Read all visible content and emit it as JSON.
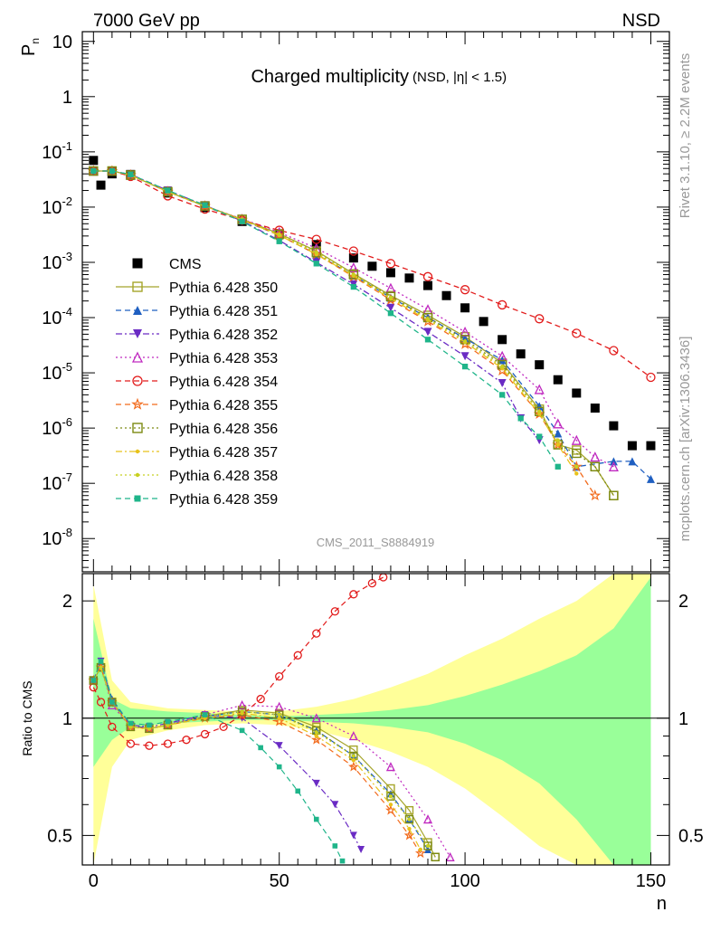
{
  "header": {
    "left": "7000 GeV pp",
    "right": "NSD"
  },
  "side_labels": {
    "top": "Rivet 3.1.10, ≥ 2.2M events",
    "bottom": "mcplots.cern.ch [arXiv:1306.3436]"
  },
  "watermark": "CMS_2011_S8884919",
  "chart_data": [
    {
      "type": "scatter",
      "panel": "main",
      "title": "Charged multiplicity",
      "subtitle": "(NSD, |η| < 1.5)",
      "ylabel": "P_n",
      "xlabel": "",
      "yscale": "log",
      "xlim": [
        -3,
        155
      ],
      "ylim": [
        2.5e-09,
        15
      ],
      "yticks_labels": [
        "10",
        "1",
        "10^-1",
        "10^-2",
        "10^-3",
        "10^-4",
        "10^-5",
        "10^-6",
        "10^-7",
        "10^-8"
      ],
      "legend_position": "left",
      "series": [
        {
          "name": "CMS",
          "color": "#000000",
          "marker": "square-filled",
          "line": "none",
          "x": [
            0,
            2,
            5,
            10,
            20,
            30,
            40,
            50,
            60,
            70,
            75,
            80,
            85,
            90,
            95,
            100,
            105,
            110,
            115,
            120,
            125,
            130,
            135,
            140,
            145,
            150
          ],
          "y": [
            0.07,
            0.025,
            0.04,
            0.039,
            0.018,
            0.0098,
            0.0055,
            0.0033,
            0.0021,
            0.0012,
            0.00085,
            0.00065,
            0.00052,
            0.00038,
            0.00025,
            0.00015,
            8.5e-05,
            4e-05,
            2.2e-05,
            1.4e-05,
            7.5e-06,
            4.3e-06,
            2.3e-06,
            1.1e-06,
            4.8e-07,
            4.8e-07
          ]
        },
        {
          "name": "Pythia 6.428 350",
          "color": "#a5a52a",
          "marker": "square-open",
          "line": "solid",
          "x": [
            0,
            5,
            10,
            20,
            30,
            40,
            50,
            60,
            70,
            80,
            90,
            100,
            110,
            120,
            125,
            130,
            135,
            140
          ],
          "y": [
            0.045,
            0.045,
            0.038,
            0.019,
            0.0105,
            0.006,
            0.0033,
            0.0016,
            0.00062,
            0.00025,
            0.00011,
            4.5e-05,
            1.5e-05,
            2.2e-06,
            5e-07,
            4e-07,
            2e-07,
            6e-08
          ]
        },
        {
          "name": "Pythia 6.428 351",
          "color": "#1f5fc1",
          "marker": "triangle-up-filled",
          "line": "dashed",
          "x": [
            0,
            5,
            10,
            20,
            30,
            40,
            50,
            60,
            70,
            80,
            90,
            100,
            110,
            120,
            125,
            130,
            140,
            145,
            150
          ],
          "y": [
            0.045,
            0.045,
            0.038,
            0.019,
            0.0103,
            0.0058,
            0.0031,
            0.0014,
            0.00058,
            0.00023,
            0.0001,
            4.2e-05,
            1.7e-05,
            2.5e-06,
            8e-07,
            2e-07,
            2.5e-07,
            2.5e-07,
            1.2e-07
          ]
        },
        {
          "name": "Pythia 6.428 352",
          "color": "#6a2bc4",
          "marker": "triangle-down-filled",
          "line": "dashdot",
          "x": [
            0,
            5,
            10,
            20,
            30,
            40,
            50,
            60,
            70,
            80,
            90,
            100,
            110,
            115,
            120
          ],
          "y": [
            0.045,
            0.045,
            0.039,
            0.02,
            0.0108,
            0.0056,
            0.0025,
            0.001,
            0.0004,
            0.00015,
            5.5e-05,
            2e-05,
            6.5e-06,
            1.5e-06,
            6e-07
          ]
        },
        {
          "name": "Pythia 6.428 353",
          "color": "#c02ac0",
          "marker": "triangle-up-open",
          "line": "dotted",
          "x": [
            0,
            5,
            10,
            20,
            30,
            40,
            50,
            60,
            70,
            80,
            90,
            100,
            110,
            120,
            125,
            130,
            135,
            140
          ],
          "y": [
            0.045,
            0.045,
            0.038,
            0.019,
            0.0105,
            0.0061,
            0.0035,
            0.0018,
            0.0008,
            0.00034,
            0.00014,
            5.5e-05,
            2e-05,
            5e-06,
            1.2e-06,
            6e-07,
            3e-07,
            2e-07
          ]
        },
        {
          "name": "Pythia 6.428 354",
          "color": "#e21b1b",
          "marker": "circle-open",
          "line": "dashed",
          "x": [
            0,
            5,
            10,
            20,
            30,
            40,
            50,
            60,
            70,
            80,
            90,
            100,
            110,
            120,
            130,
            140,
            150
          ],
          "y": [
            0.045,
            0.045,
            0.036,
            0.016,
            0.0092,
            0.0058,
            0.0038,
            0.0026,
            0.0016,
            0.00095,
            0.00055,
            0.00032,
            0.00017,
            9.53e-05,
            5.2e-05,
            2.53e-05,
            8.3e-06
          ]
        },
        {
          "name": "Pythia 6.428 355",
          "color": "#f26a1b",
          "marker": "star-open",
          "line": "dashed",
          "x": [
            0,
            5,
            10,
            20,
            30,
            40,
            50,
            60,
            70,
            80,
            90,
            100,
            110,
            120,
            125,
            130,
            135
          ],
          "y": [
            0.045,
            0.045,
            0.038,
            0.019,
            0.0104,
            0.0059,
            0.0031,
            0.0014,
            0.00055,
            0.00021,
            8.5e-05,
            3.3e-05,
            1.1e-05,
            1.8e-06,
            5e-07,
            2e-07,
            6e-08
          ]
        },
        {
          "name": "Pythia 6.428 356",
          "color": "#7c8a12",
          "marker": "square-open",
          "line": "dotted",
          "x": [
            0,
            5,
            10,
            20,
            30,
            40,
            50,
            60,
            70,
            80,
            90,
            100,
            110,
            120,
            125,
            130,
            135,
            140
          ],
          "y": [
            0.045,
            0.045,
            0.038,
            0.019,
            0.0105,
            0.006,
            0.0032,
            0.0015,
            0.0006,
            0.00024,
            0.0001,
            4e-05,
            1.4e-05,
            2e-06,
            5e-07,
            3.5e-07,
            2e-07,
            6e-08
          ]
        },
        {
          "name": "Pythia 6.428 357",
          "color": "#e8c21a",
          "marker": "dot-small",
          "line": "dashdot",
          "x": [
            0,
            5,
            10,
            20,
            30,
            40,
            50,
            60,
            70,
            80,
            90,
            100,
            110,
            120,
            125,
            130
          ],
          "y": [
            0.045,
            0.045,
            0.038,
            0.019,
            0.0104,
            0.0059,
            0.0031,
            0.0014,
            0.00057,
            0.00022,
            9e-05,
            3.6e-05,
            1.2e-05,
            1.8e-06,
            5e-07,
            1.5e-07
          ]
        },
        {
          "name": "Pythia 6.428 358",
          "color": "#c8d020",
          "marker": "dot-small",
          "line": "dotted",
          "x": [
            0,
            5,
            10,
            20,
            30,
            40,
            50,
            60,
            70,
            80,
            90,
            100,
            110,
            120,
            125,
            130
          ],
          "y": [
            0.045,
            0.045,
            0.038,
            0.019,
            0.0104,
            0.006,
            0.0032,
            0.0015,
            0.0006,
            0.00023,
            9.5e-05,
            3.7e-05,
            1.3e-05,
            2e-06,
            6e-07,
            2e-07
          ]
        },
        {
          "name": "Pythia 6.428 359",
          "color": "#1fb58a",
          "marker": "square-small-filled",
          "line": "dashed",
          "x": [
            0,
            5,
            10,
            20,
            30,
            40,
            50,
            60,
            70,
            80,
            90,
            100,
            110,
            115,
            120,
            125
          ],
          "y": [
            0.045,
            0.045,
            0.039,
            0.02,
            0.0108,
            0.0055,
            0.0024,
            0.00095,
            0.00036,
            0.00012,
            4e-05,
            1.3e-05,
            4e-06,
            1.5e-06,
            7e-07,
            2e-07
          ]
        }
      ]
    },
    {
      "type": "line",
      "panel": "ratio",
      "ylabel": "Ratio to CMS",
      "xlabel": "n",
      "xlim": [
        -3,
        155
      ],
      "ylim": [
        0.42,
        2.35
      ],
      "yscale": "log",
      "yticks_labels": [
        "0.5",
        "1",
        "2"
      ],
      "xticks_labels": [
        "0",
        "50",
        "100",
        "150"
      ],
      "reference_line": 1,
      "bands": {
        "x": [
          0,
          5,
          10,
          20,
          30,
          40,
          50,
          60,
          70,
          80,
          90,
          100,
          110,
          120,
          130,
          140,
          150
        ],
        "inner_up": [
          1.8,
          1.12,
          1.06,
          1.04,
          1.03,
          1.02,
          1.01,
          1.02,
          1.03,
          1.05,
          1.08,
          1.14,
          1.22,
          1.32,
          1.45,
          1.7,
          2.3
        ],
        "inner_down": [
          0.75,
          0.88,
          0.95,
          0.97,
          0.98,
          0.99,
          0.99,
          0.98,
          0.97,
          0.95,
          0.92,
          0.86,
          0.78,
          0.68,
          0.55,
          0.42,
          0.42
        ],
        "outer_up": [
          2.2,
          1.25,
          1.1,
          1.06,
          1.05,
          1.04,
          1.04,
          1.07,
          1.12,
          1.2,
          1.3,
          1.45,
          1.6,
          1.8,
          2.0,
          2.35,
          2.35
        ],
        "outer_down": [
          0.42,
          0.75,
          0.88,
          0.93,
          0.96,
          0.97,
          0.96,
          0.93,
          0.88,
          0.82,
          0.75,
          0.66,
          0.56,
          0.47,
          0.42,
          0.42,
          0.42
        ]
      },
      "series": [
        {
          "name": "Pythia 6.428 350",
          "x": [
            0,
            2,
            5,
            10,
            15,
            20,
            30,
            40,
            50,
            60,
            70,
            80,
            85,
            90,
            92
          ],
          "y": [
            1.25,
            1.35,
            1.1,
            0.95,
            0.94,
            0.96,
            1.01,
            1.05,
            1.03,
            0.95,
            0.83,
            0.66,
            0.58,
            0.48,
            0.44
          ]
        },
        {
          "name": "Pythia 6.428 351",
          "x": [
            0,
            2,
            5,
            10,
            15,
            20,
            30,
            40,
            50,
            60,
            70,
            80,
            85,
            90
          ],
          "y": [
            1.25,
            1.4,
            1.12,
            0.96,
            0.94,
            0.96,
            1.01,
            1.04,
            1.02,
            0.93,
            0.8,
            0.64,
            0.55,
            0.46
          ]
        },
        {
          "name": "Pythia 6.428 352",
          "x": [
            0,
            2,
            5,
            10,
            15,
            20,
            30,
            40,
            50,
            60,
            65,
            70,
            72
          ],
          "y": [
            1.25,
            1.4,
            1.1,
            0.96,
            0.95,
            0.97,
            1.02,
            1.0,
            0.85,
            0.68,
            0.6,
            0.5,
            0.46
          ]
        },
        {
          "name": "Pythia 6.428 353",
          "x": [
            0,
            2,
            5,
            10,
            15,
            20,
            30,
            40,
            50,
            60,
            70,
            80,
            90,
            96
          ],
          "y": [
            1.25,
            1.35,
            1.08,
            0.95,
            0.94,
            0.96,
            1.02,
            1.08,
            1.07,
            1.0,
            0.9,
            0.75,
            0.55,
            0.44
          ]
        },
        {
          "name": "Pythia 6.428 354",
          "x": [
            0,
            2,
            5,
            10,
            15,
            20,
            25,
            30,
            35,
            40,
            45,
            50,
            55,
            60,
            65,
            70,
            75,
            78
          ],
          "y": [
            1.2,
            1.1,
            0.95,
            0.86,
            0.85,
            0.86,
            0.88,
            0.91,
            0.95,
            1.02,
            1.12,
            1.28,
            1.45,
            1.65,
            1.88,
            2.08,
            2.22,
            2.3
          ]
        },
        {
          "name": "Pythia 6.428 355",
          "x": [
            0,
            2,
            5,
            10,
            15,
            20,
            30,
            40,
            50,
            60,
            70,
            80,
            85,
            88
          ],
          "y": [
            1.25,
            1.35,
            1.1,
            0.95,
            0.94,
            0.96,
            1.0,
            1.02,
            0.98,
            0.88,
            0.75,
            0.58,
            0.5,
            0.45
          ]
        },
        {
          "name": "Pythia 6.428 356",
          "x": [
            0,
            2,
            5,
            10,
            15,
            20,
            30,
            40,
            50,
            60,
            70,
            80,
            85,
            90,
            92
          ],
          "y": [
            1.25,
            1.35,
            1.1,
            0.95,
            0.94,
            0.96,
            1.01,
            1.04,
            1.02,
            0.93,
            0.8,
            0.63,
            0.55,
            0.47,
            0.44
          ]
        },
        {
          "name": "Pythia 6.428 357",
          "x": [
            0,
            2,
            5,
            10,
            15,
            20,
            30,
            40,
            50,
            60,
            70,
            80,
            85,
            88
          ],
          "y": [
            1.25,
            1.35,
            1.1,
            0.95,
            0.94,
            0.96,
            1.0,
            1.03,
            1.0,
            0.9,
            0.78,
            0.6,
            0.52,
            0.46
          ]
        },
        {
          "name": "Pythia 6.428 358",
          "x": [
            0,
            2,
            5,
            10,
            15,
            20,
            30,
            40,
            50,
            60,
            70,
            80,
            85,
            90
          ],
          "y": [
            1.25,
            1.35,
            1.1,
            0.95,
            0.94,
            0.96,
            1.01,
            1.04,
            1.02,
            0.92,
            0.8,
            0.63,
            0.55,
            0.47
          ]
        },
        {
          "name": "Pythia 6.428 359",
          "x": [
            0,
            2,
            5,
            10,
            15,
            20,
            30,
            40,
            45,
            50,
            55,
            60,
            65,
            67
          ],
          "y": [
            1.25,
            1.4,
            1.1,
            0.97,
            0.96,
            0.98,
            1.02,
            0.93,
            0.84,
            0.75,
            0.65,
            0.55,
            0.47,
            0.43
          ]
        }
      ]
    }
  ]
}
